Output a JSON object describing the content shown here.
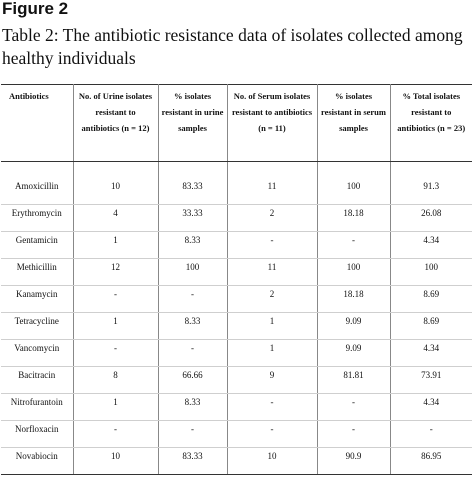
{
  "figure_label": "Figure 2",
  "caption": "Table 2: The antibiotic resistance data of isolates collected among healthy individuals",
  "table": {
    "headers": [
      "Antibiotics",
      "No. of Urine isolates resistant to antibiotics (n = 12)",
      "% isolates resistant in urine samples",
      "No. of Serum isolates resistant to antibiotics (n = 11)",
      "% isolates resistant in serum samples",
      "% Total isolates resistant to antibiotics (n = 23)"
    ],
    "rows": [
      [
        "Amoxicillin",
        "10",
        "83.33",
        "11",
        "100",
        "91.3"
      ],
      [
        "Erythromycin",
        "4",
        "33.33",
        "2",
        "18.18",
        "26.08"
      ],
      [
        "Gentamicin",
        "1",
        "8.33",
        "-",
        "-",
        "4.34"
      ],
      [
        "Methicillin",
        "12",
        "100",
        "11",
        "100",
        "100"
      ],
      [
        "Kanamycin",
        "-",
        "-",
        "2",
        "18.18",
        "8.69"
      ],
      [
        "Tetracycline",
        "1",
        "8.33",
        "1",
        "9.09",
        "8.69"
      ],
      [
        "Vancomycin",
        "-",
        "-",
        "1",
        "9.09",
        "4.34"
      ],
      [
        "Bacitracin",
        "8",
        "66.66",
        "9",
        "81.81",
        "73.91"
      ],
      [
        "Nitrofurantoin",
        "1",
        "8.33",
        "-",
        "-",
        "4.34"
      ],
      [
        "Norfloxacin",
        "-",
        "-",
        "-",
        "-",
        "-"
      ],
      [
        "Novabiocin",
        "10",
        "83.33",
        "10",
        "90.9",
        "86.95"
      ]
    ]
  }
}
